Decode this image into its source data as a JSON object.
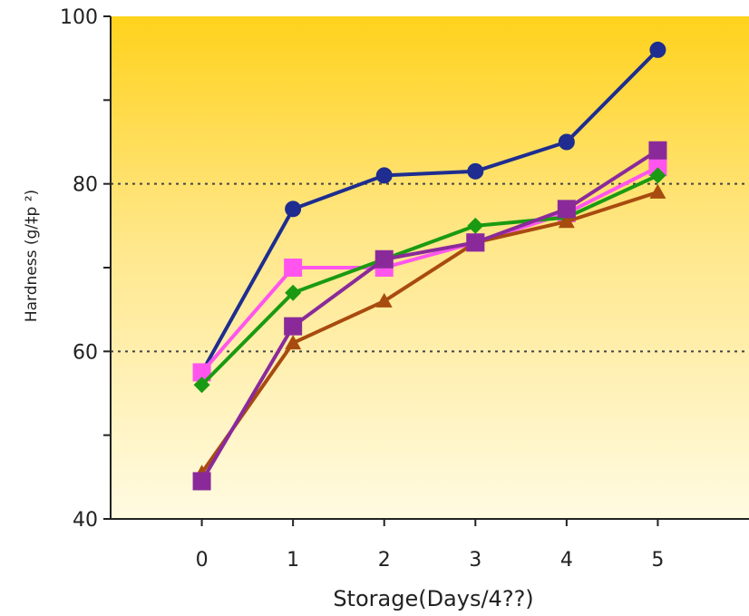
{
  "chart_data": {
    "type": "line",
    "xlabel": "Storage(Days/4??)",
    "ylabel": "Hardness (g/‡p ²)",
    "x": [
      0,
      1,
      2,
      3,
      4,
      5
    ],
    "xlim": [
      -1,
      6
    ],
    "ylim": [
      40,
      100
    ],
    "yticks": [
      40,
      60,
      80,
      100
    ],
    "xticks": [
      0,
      1,
      2,
      3,
      4,
      5
    ],
    "grid_lines_y": [
      60,
      80
    ],
    "background": {
      "top": "#ffd21c",
      "bottom": "#fffbe2"
    },
    "series": [
      {
        "values": [
          57.5,
          77,
          81,
          81.5,
          85,
          96
        ],
        "color": "#1e2d8f",
        "marker": "circle"
      },
      {
        "values": [
          57.5,
          70,
          70,
          73,
          76.5,
          82
        ],
        "color": "#ff55ee",
        "marker": "square"
      },
      {
        "values": [
          56,
          67,
          71,
          75,
          76,
          81
        ],
        "color": "#1a9a12",
        "marker": "diamond"
      },
      {
        "values": [
          45.5,
          61,
          66,
          73,
          75.5,
          79
        ],
        "color": "#a84b0f",
        "marker": "triangle"
      },
      {
        "values": [
          44.5,
          63,
          71,
          73,
          77,
          84
        ],
        "color": "#8a2a9a",
        "marker": "square"
      }
    ]
  }
}
